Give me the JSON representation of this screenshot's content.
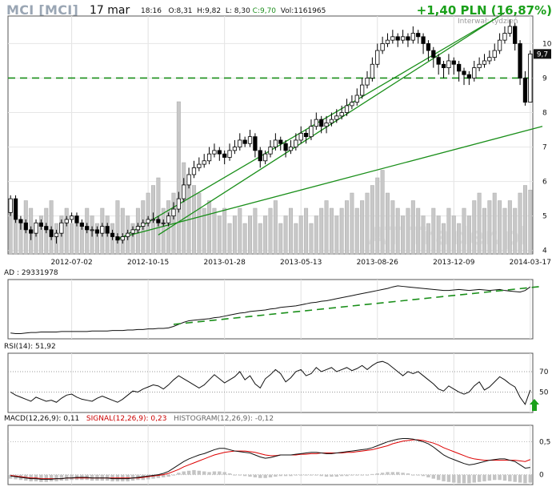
{
  "header": {
    "title": "MCI [MCI]",
    "date": "17 mar",
    "time": "18:16",
    "open": "O:8,31",
    "high": "H:9,82",
    "low": "L: 8,30",
    "close": "C:9,70",
    "volume": "Vol:1161965",
    "change": "+1,40 PLN (16,87%)",
    "interval": "Interwał: tydzień",
    "watermark": "AT Trader.pl",
    "last_price_label": "9,7"
  },
  "colors": {
    "up": "#ffffff",
    "down": "#000000",
    "volume": "#c8c8c8",
    "trendline": "#1a8f1a",
    "dashed": "#1a8f1a",
    "macd": "#111111",
    "signal": "#dd0000"
  },
  "chart_data": [
    {
      "type": "candlestick",
      "panel": "price",
      "ylim": [
        3.9,
        10.8
      ],
      "y_ticks": [
        "4",
        "5",
        "6",
        "7",
        "8",
        "9",
        "10"
      ],
      "x_tick_labels": [
        "2012-07-02",
        "2012-10-15",
        "2013-01-28",
        "2013-05-13",
        "2013-08-26",
        "2013-12-09",
        "2014-03-17"
      ],
      "x_tick_index": [
        12,
        27,
        42,
        57,
        72,
        87,
        102
      ],
      "open": [
        5.1,
        5.5,
        4.9,
        4.8,
        4.6,
        4.5,
        4.8,
        4.7,
        4.6,
        4.4,
        4.5,
        4.8,
        4.9,
        5.0,
        4.8,
        4.7,
        4.6,
        4.6,
        4.5,
        4.7,
        4.5,
        4.4,
        4.3,
        4.4,
        4.5,
        4.6,
        4.7,
        4.8,
        4.9,
        4.9,
        4.8,
        4.8,
        5.0,
        5.2,
        5.5,
        5.9,
        6.2,
        6.4,
        6.5,
        6.6,
        6.8,
        6.9,
        6.8,
        6.7,
        6.9,
        7.0,
        7.2,
        7.1,
        7.3,
        6.9,
        6.6,
        6.8,
        7.0,
        7.2,
        7.1,
        6.9,
        7.0,
        7.2,
        7.4,
        7.3,
        7.6,
        7.8,
        7.6,
        7.7,
        7.8,
        7.9,
        8.0,
        8.2,
        8.3,
        8.5,
        8.8,
        9.0,
        9.4,
        9.8,
        10.0,
        10.1,
        10.2,
        10.1,
        10.2,
        10.1,
        10.3,
        10.2,
        10.0,
        9.8,
        9.6,
        9.4,
        9.3,
        9.5,
        9.4,
        9.2,
        9.1,
        9.0,
        9.3,
        9.4,
        9.5,
        9.6,
        9.8,
        10.1,
        10.3,
        10.5,
        10.0,
        9.0,
        8.3
      ],
      "close": [
        5.5,
        4.9,
        4.8,
        4.6,
        4.5,
        4.8,
        4.7,
        4.6,
        4.4,
        4.5,
        4.8,
        4.9,
        5.0,
        4.8,
        4.7,
        4.6,
        4.6,
        4.5,
        4.7,
        4.5,
        4.4,
        4.3,
        4.4,
        4.5,
        4.6,
        4.7,
        4.8,
        4.9,
        4.9,
        4.8,
        4.8,
        5.0,
        5.2,
        5.5,
        5.9,
        6.2,
        6.4,
        6.5,
        6.6,
        6.8,
        6.9,
        6.8,
        6.7,
        6.9,
        7.0,
        7.2,
        7.1,
        7.3,
        6.9,
        6.6,
        6.8,
        7.0,
        7.2,
        7.1,
        6.9,
        7.0,
        7.2,
        7.4,
        7.3,
        7.6,
        7.8,
        7.6,
        7.7,
        7.8,
        7.9,
        8.0,
        8.2,
        8.3,
        8.5,
        8.8,
        9.0,
        9.4,
        9.8,
        10.0,
        10.1,
        10.2,
        10.1,
        10.2,
        10.1,
        10.3,
        10.2,
        10.0,
        9.8,
        9.6,
        9.4,
        9.3,
        9.5,
        9.4,
        9.2,
        9.1,
        9.0,
        9.3,
        9.4,
        9.5,
        9.6,
        9.8,
        10.1,
        10.3,
        10.5,
        10.0,
        9.0,
        8.3,
        9.7
      ],
      "high": [
        5.6,
        5.6,
        5.0,
        4.9,
        4.7,
        4.9,
        4.9,
        4.8,
        4.7,
        4.6,
        4.9,
        5.0,
        5.1,
        5.1,
        4.9,
        4.8,
        4.7,
        4.7,
        4.8,
        4.8,
        4.6,
        4.5,
        4.5,
        4.6,
        4.7,
        4.8,
        4.9,
        5.0,
        5.1,
        5.0,
        4.9,
        5.1,
        5.4,
        5.7,
        6.1,
        6.4,
        6.6,
        6.7,
        6.8,
        7.0,
        7.1,
        7.0,
        6.9,
        7.1,
        7.2,
        7.4,
        7.3,
        7.5,
        7.4,
        7.0,
        6.9,
        7.2,
        7.4,
        7.3,
        7.2,
        7.2,
        7.4,
        7.6,
        7.5,
        7.8,
        8.0,
        7.9,
        7.9,
        8.0,
        8.1,
        8.2,
        8.4,
        8.5,
        8.7,
        9.0,
        9.2,
        9.6,
        10.0,
        10.2,
        10.3,
        10.4,
        10.3,
        10.4,
        10.3,
        10.5,
        10.4,
        10.3,
        10.1,
        9.9,
        9.7,
        9.5,
        9.7,
        9.6,
        9.5,
        9.3,
        9.2,
        9.5,
        9.6,
        9.7,
        9.8,
        10.0,
        10.3,
        10.5,
        10.7,
        10.6,
        10.1,
        9.2,
        9.8
      ],
      "low": [
        5.0,
        4.8,
        4.6,
        4.5,
        4.3,
        4.4,
        4.6,
        4.5,
        4.3,
        4.2,
        4.4,
        4.7,
        4.8,
        4.7,
        4.6,
        4.5,
        4.4,
        4.4,
        4.4,
        4.4,
        4.3,
        4.2,
        4.2,
        4.3,
        4.4,
        4.5,
        4.6,
        4.7,
        4.8,
        4.7,
        4.7,
        4.7,
        4.9,
        5.1,
        5.4,
        5.8,
        6.1,
        6.3,
        6.4,
        6.5,
        6.7,
        6.6,
        6.5,
        6.6,
        6.8,
        6.9,
        7.0,
        7.0,
        6.7,
        6.4,
        6.5,
        6.7,
        6.9,
        6.9,
        6.7,
        6.8,
        6.9,
        7.1,
        7.1,
        7.2,
        7.5,
        7.4,
        7.4,
        7.6,
        7.7,
        7.8,
        7.9,
        8.1,
        8.2,
        8.4,
        8.7,
        8.9,
        9.3,
        9.7,
        9.9,
        10.0,
        9.9,
        10.0,
        9.9,
        10.0,
        10.0,
        9.7,
        9.5,
        9.3,
        9.1,
        9.0,
        9.1,
        9.1,
        8.9,
        8.8,
        8.8,
        8.9,
        9.2,
        9.3,
        9.4,
        9.5,
        9.7,
        10.0,
        10.2,
        9.8,
        8.8,
        8.2,
        8.3
      ],
      "volume_rel": [
        0.3,
        0.25,
        0.2,
        0.35,
        0.3,
        0.2,
        0.25,
        0.3,
        0.35,
        0.2,
        0.25,
        0.3,
        0.2,
        0.25,
        0.2,
        0.3,
        0.25,
        0.2,
        0.3,
        0.25,
        0.2,
        0.35,
        0.3,
        0.25,
        0.2,
        0.3,
        0.35,
        0.4,
        0.45,
        0.5,
        0.3,
        0.35,
        0.4,
        1.0,
        0.6,
        0.5,
        0.45,
        0.4,
        0.3,
        0.35,
        0.3,
        0.25,
        0.3,
        0.2,
        0.25,
        0.3,
        0.2,
        0.25,
        0.3,
        0.2,
        0.25,
        0.3,
        0.35,
        0.2,
        0.25,
        0.3,
        0.2,
        0.25,
        0.3,
        0.2,
        0.25,
        0.3,
        0.35,
        0.3,
        0.25,
        0.3,
        0.35,
        0.4,
        0.3,
        0.35,
        0.4,
        0.45,
        0.5,
        0.55,
        0.4,
        0.35,
        0.3,
        0.25,
        0.3,
        0.35,
        0.3,
        0.25,
        0.2,
        0.3,
        0.25,
        0.2,
        0.3,
        0.25,
        0.2,
        0.3,
        0.25,
        0.35,
        0.4,
        0.3,
        0.35,
        0.4,
        0.35,
        0.3,
        0.35,
        0.3,
        0.4,
        0.45,
        0.42
      ]
    },
    {
      "type": "line",
      "panel": "ad",
      "label": "AD : 29331978",
      "values": [
        0.05,
        0.04,
        0.04,
        0.05,
        0.06,
        0.06,
        0.07,
        0.07,
        0.07,
        0.07,
        0.08,
        0.08,
        0.08,
        0.08,
        0.08,
        0.08,
        0.09,
        0.09,
        0.09,
        0.09,
        0.1,
        0.1,
        0.1,
        0.11,
        0.11,
        0.12,
        0.12,
        0.13,
        0.13,
        0.14,
        0.14,
        0.15,
        0.18,
        0.22,
        0.26,
        0.29,
        0.3,
        0.31,
        0.32,
        0.33,
        0.35,
        0.36,
        0.38,
        0.4,
        0.42,
        0.44,
        0.45,
        0.47,
        0.48,
        0.49,
        0.5,
        0.52,
        0.53,
        0.55,
        0.56,
        0.57,
        0.58,
        0.6,
        0.62,
        0.64,
        0.65,
        0.67,
        0.68,
        0.7,
        0.72,
        0.74,
        0.76,
        0.78,
        0.8,
        0.82,
        0.84,
        0.86,
        0.88,
        0.9,
        0.92,
        0.95,
        0.97,
        0.96,
        0.95,
        0.94,
        0.93,
        0.92,
        0.91,
        0.9,
        0.89,
        0.88,
        0.88,
        0.89,
        0.9,
        0.89,
        0.88,
        0.89,
        0.9,
        0.89,
        0.88,
        0.89,
        0.9,
        0.88,
        0.87,
        0.86,
        0.85,
        0.88,
        0.95
      ],
      "trend": [
        [
          32,
          0.22
        ],
        [
          102,
          0.93
        ]
      ]
    },
    {
      "type": "line",
      "panel": "rsi",
      "label": "RSI(14): 51,92",
      "ylim": [
        0,
        100
      ],
      "y_ticks": [
        "50",
        "70"
      ],
      "values": [
        50,
        47,
        45,
        43,
        41,
        45,
        43,
        41,
        42,
        40,
        44,
        47,
        48,
        45,
        43,
        42,
        41,
        44,
        46,
        44,
        42,
        40,
        43,
        47,
        51,
        50,
        53,
        55,
        57,
        56,
        53,
        57,
        62,
        66,
        63,
        60,
        57,
        54,
        57,
        62,
        67,
        63,
        59,
        62,
        65,
        70,
        62,
        66,
        58,
        54,
        63,
        67,
        72,
        68,
        60,
        64,
        70,
        72,
        66,
        68,
        74,
        70,
        72,
        74,
        70,
        72,
        74,
        71,
        73,
        76,
        72,
        76,
        79,
        80,
        78,
        74,
        70,
        66,
        70,
        68,
        70,
        66,
        62,
        58,
        53,
        51,
        56,
        53,
        50,
        48,
        50,
        56,
        60,
        52,
        55,
        60,
        65,
        62,
        58,
        55,
        45,
        38,
        52
      ],
      "arrow": "up"
    },
    {
      "type": "line",
      "panel": "macd",
      "label": "MACD(12,26,9): 0,11",
      "signal_label": "SIGNAL(12,26,9): 0,23",
      "histogram_label": "HISTOGRAM(12,26,9): -0,12",
      "ylim": [
        -0.15,
        0.75
      ],
      "y_ticks": [
        "0",
        "0,5"
      ],
      "macd": [
        -0.02,
        -0.03,
        -0.04,
        -0.05,
        -0.06,
        -0.06,
        -0.07,
        -0.07,
        -0.07,
        -0.06,
        -0.06,
        -0.05,
        -0.05,
        -0.04,
        -0.04,
        -0.04,
        -0.05,
        -0.05,
        -0.05,
        -0.05,
        -0.06,
        -0.06,
        -0.06,
        -0.06,
        -0.05,
        -0.04,
        -0.03,
        -0.02,
        -0.01,
        0.0,
        0.02,
        0.05,
        0.1,
        0.15,
        0.2,
        0.24,
        0.27,
        0.3,
        0.32,
        0.35,
        0.38,
        0.4,
        0.4,
        0.38,
        0.36,
        0.35,
        0.34,
        0.33,
        0.3,
        0.27,
        0.25,
        0.26,
        0.28,
        0.3,
        0.3,
        0.3,
        0.31,
        0.32,
        0.33,
        0.34,
        0.34,
        0.33,
        0.32,
        0.32,
        0.33,
        0.34,
        0.35,
        0.36,
        0.37,
        0.38,
        0.39,
        0.41,
        0.44,
        0.47,
        0.5,
        0.52,
        0.54,
        0.55,
        0.55,
        0.54,
        0.52,
        0.5,
        0.47,
        0.42,
        0.36,
        0.3,
        0.26,
        0.23,
        0.2,
        0.17,
        0.15,
        0.16,
        0.18,
        0.2,
        0.22,
        0.23,
        0.24,
        0.24,
        0.22,
        0.2,
        0.15,
        0.1,
        0.11
      ],
      "signal": [
        -0.01,
        -0.02,
        -0.03,
        -0.04,
        -0.05,
        -0.05,
        -0.06,
        -0.06,
        -0.06,
        -0.06,
        -0.06,
        -0.05,
        -0.05,
        -0.05,
        -0.05,
        -0.05,
        -0.05,
        -0.05,
        -0.05,
        -0.05,
        -0.05,
        -0.05,
        -0.05,
        -0.05,
        -0.05,
        -0.05,
        -0.04,
        -0.03,
        -0.02,
        -0.01,
        0.0,
        0.02,
        0.05,
        0.08,
        0.12,
        0.15,
        0.18,
        0.21,
        0.24,
        0.27,
        0.3,
        0.32,
        0.34,
        0.35,
        0.36,
        0.36,
        0.36,
        0.35,
        0.34,
        0.32,
        0.3,
        0.29,
        0.29,
        0.3,
        0.3,
        0.3,
        0.3,
        0.31,
        0.31,
        0.32,
        0.32,
        0.33,
        0.33,
        0.33,
        0.33,
        0.33,
        0.34,
        0.34,
        0.35,
        0.36,
        0.37,
        0.38,
        0.4,
        0.42,
        0.44,
        0.47,
        0.49,
        0.51,
        0.52,
        0.53,
        0.53,
        0.52,
        0.5,
        0.48,
        0.45,
        0.41,
        0.38,
        0.35,
        0.32,
        0.29,
        0.26,
        0.24,
        0.23,
        0.22,
        0.22,
        0.22,
        0.22,
        0.22,
        0.22,
        0.22,
        0.21,
        0.2,
        0.23
      ],
      "histogram": [
        -0.06,
        -0.07,
        -0.08,
        -0.09,
        -0.1,
        -0.1,
        -0.11,
        -0.11,
        -0.1,
        -0.1,
        -0.09,
        -0.09,
        -0.08,
        -0.08,
        -0.08,
        -0.08,
        -0.09,
        -0.09,
        -0.09,
        -0.09,
        -0.1,
        -0.1,
        -0.1,
        -0.1,
        -0.09,
        -0.08,
        -0.08,
        -0.07,
        -0.06,
        -0.05,
        -0.04,
        -0.03,
        0.0,
        0.03,
        0.05,
        0.06,
        0.07,
        0.06,
        0.05,
        0.04,
        0.05,
        0.05,
        0.04,
        0.02,
        0.0,
        -0.01,
        -0.02,
        -0.03,
        -0.04,
        -0.05,
        -0.05,
        -0.04,
        -0.03,
        -0.02,
        -0.02,
        -0.02,
        -0.01,
        -0.01,
        0.0,
        0.0,
        -0.01,
        -0.02,
        -0.03,
        -0.03,
        -0.03,
        -0.02,
        -0.02,
        -0.01,
        -0.01,
        0.0,
        0.0,
        0.01,
        0.02,
        0.03,
        0.04,
        0.04,
        0.04,
        0.03,
        0.02,
        0.0,
        -0.01,
        -0.02,
        -0.04,
        -0.06,
        -0.08,
        -0.1,
        -0.11,
        -0.12,
        -0.13,
        -0.13,
        -0.13,
        -0.12,
        -0.11,
        -0.1,
        -0.09,
        -0.08,
        -0.08,
        -0.09,
        -0.1,
        -0.11,
        -0.12,
        -0.13,
        -0.12
      ]
    }
  ]
}
